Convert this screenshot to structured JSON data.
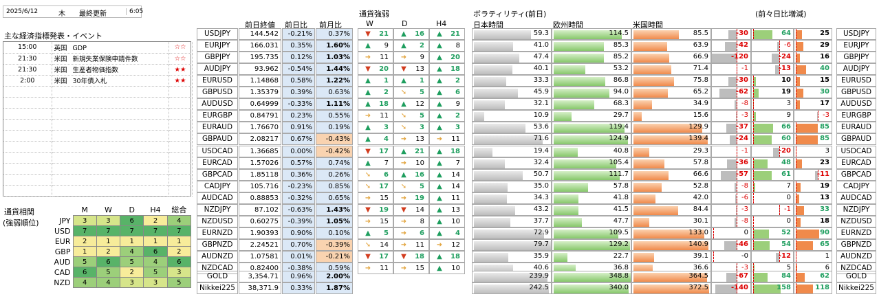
{
  "header": {
    "date": "2025/6/12",
    "weekday": "木",
    "update_label": "最終更新",
    "time": "6:05"
  },
  "events": {
    "title": "主な経済指標発表・イベント",
    "rows": [
      {
        "time": "15:00",
        "country": "英国",
        "name": "GDP",
        "stars": "☆☆"
      },
      {
        "time": "21:30",
        "country": "米国",
        "name": "新規失業保険申請件数",
        "stars": "☆☆"
      },
      {
        "time": "21:30",
        "country": "米国",
        "name": "生産者物価指数",
        "stars": "★★"
      },
      {
        "time": "2:00",
        "country": "米国",
        "name": "30年債入札",
        "stars": "★★"
      }
    ]
  },
  "correlation": {
    "title1": "通貨相関",
    "title2": "(強弱順位)",
    "cols": [
      "M",
      "W",
      "D",
      "H4",
      "総合"
    ],
    "rows": [
      {
        "ccy": "JPY",
        "vals": [
          "3",
          "3",
          "6",
          "2",
          "4"
        ]
      },
      {
        "ccy": "USD",
        "vals": [
          "7",
          "7",
          "7",
          "7",
          "7"
        ]
      },
      {
        "ccy": "EUR",
        "vals": [
          "2",
          "1",
          "1",
          "1",
          "1"
        ]
      },
      {
        "ccy": "GBP",
        "vals": [
          "1",
          "2",
          "4",
          "6",
          "2"
        ]
      },
      {
        "ccy": "AUD",
        "vals": [
          "5",
          "6",
          "5",
          "4",
          "6"
        ]
      },
      {
        "ccy": "CAD",
        "vals": [
          "6",
          "5",
          "2",
          "5",
          "3"
        ]
      },
      {
        "ccy": "NZD",
        "vals": [
          "4",
          "4",
          "3",
          "3",
          "5"
        ]
      }
    ]
  },
  "price": {
    "col_prev": "前日終値",
    "col_day": "前日比",
    "col_month": "前月比"
  },
  "strength": {
    "title": "通貨強弱",
    "cols": [
      "W",
      "D",
      "H4"
    ]
  },
  "vol": {
    "title": "ボラティリティ(前日)",
    "jp": "日本時間",
    "eu": "欧州時間",
    "us": "米国時間",
    "diff": "(前々日比増減)"
  },
  "pairs": [
    {
      "name": "USDJPY",
      "prev": "144.542",
      "day": "-0.21%",
      "month": "0.37%",
      "s": [
        [
          "dn",
          "21"
        ],
        [
          "up",
          "16"
        ],
        [
          "up",
          "21"
        ]
      ],
      "jp": "59.3",
      "eu": "114.5",
      "us": "85.5",
      "d1": "-30",
      "d2": "64",
      "d3": "25"
    },
    {
      "name": "EURJPY",
      "prev": "166.031",
      "day": "0.35%",
      "month": "1.60%",
      "s": [
        [
          "up",
          "9"
        ],
        [
          "up",
          "2"
        ],
        [
          "up",
          "8"
        ]
      ],
      "jp": "41.0",
      "eu": "85.3",
      "us": "63.9",
      "d1": "-42",
      "d2": "-6",
      "d3": "29"
    },
    {
      "name": "GBPJPY",
      "prev": "195.735",
      "day": "0.12%",
      "month": "1.03%",
      "s": [
        [
          "rt",
          "11"
        ],
        [
          "rt",
          "9"
        ],
        [
          "up",
          "20"
        ]
      ],
      "jp": "47.4",
      "eu": "85.2",
      "us": "66.9",
      "d1": "-120",
      "d2": "-24",
      "d3": "16"
    },
    {
      "name": "AUDJPY",
      "prev": "93.962",
      "day": "-0.54%",
      "month": "1.44%",
      "s": [
        [
          "dn",
          "20"
        ],
        [
          "dn",
          "13"
        ],
        [
          "up",
          "18"
        ]
      ],
      "jp": "40.1",
      "eu": "53.2",
      "us": "71.4",
      "d1": "-1",
      "d2": "-13",
      "d3": "40"
    },
    {
      "name": "EURUSD",
      "prev": "1.14868",
      "day": "0.58%",
      "month": "1.22%",
      "s": [
        [
          "up",
          "1"
        ],
        [
          "up",
          "1"
        ],
        [
          "up",
          "2"
        ]
      ],
      "jp": "33.3",
      "eu": "86.8",
      "us": "75.8",
      "d1": "-30",
      "d2": "10",
      "d3": "15"
    },
    {
      "name": "GBPUSD",
      "prev": "1.35379",
      "day": "0.39%",
      "month": "0.63%",
      "s": [
        [
          "up",
          "2"
        ],
        [
          "dr",
          "5"
        ],
        [
          "up",
          "6"
        ]
      ],
      "jp": "45.9",
      "eu": "94.0",
      "us": "65.2",
      "d1": "-62",
      "d2": "19",
      "d3": "30"
    },
    {
      "name": "AUDUSD",
      "prev": "0.64999",
      "day": "-0.33%",
      "month": "1.11%",
      "s": [
        [
          "up",
          "18"
        ],
        [
          "up",
          "12"
        ],
        [
          "up",
          "9"
        ]
      ],
      "jp": "32.1",
      "eu": "68.3",
      "us": "34.9",
      "d1": "-8",
      "d2": "3",
      "d3": "17"
    },
    {
      "name": "EURGBP",
      "prev": "0.84791",
      "day": "0.23%",
      "month": "0.55%",
      "s": [
        [
          "rt",
          "11"
        ],
        [
          "dr",
          "5"
        ],
        [
          "up",
          "2"
        ]
      ],
      "jp": "10.9",
      "eu": "29.7",
      "us": "15.6",
      "d1": "-3",
      "d2": "9",
      "d3": "-3"
    },
    {
      "name": "EURAUD",
      "prev": "1.76670",
      "day": "0.91%",
      "month": "0.19%",
      "s": [
        [
          "up",
          "3"
        ],
        [
          "dr",
          "3"
        ],
        [
          "up",
          "3"
        ]
      ],
      "jp": "53.6",
      "eu": "119.4",
      "us": "129.9",
      "d1": "-37",
      "d2": "66",
      "d3": "85"
    },
    {
      "name": "GBPAUD",
      "prev": "2.08217",
      "day": "0.67%",
      "month": "-0.43%",
      "s": [
        [
          "up",
          "4"
        ],
        [
          "rt",
          "13"
        ],
        [
          "rt",
          "11"
        ]
      ],
      "jp": "71.6",
      "eu": "124.9",
      "us": "139.4",
      "d1": "-24",
      "d2": "60",
      "d3": "85"
    },
    {
      "name": "USDCAD",
      "prev": "1.36685",
      "day": "0.00%",
      "month": "-0.42%",
      "s": [
        [
          "dn",
          "17"
        ],
        [
          "up",
          "21"
        ],
        [
          "up",
          "18"
        ]
      ],
      "jp": "19.4",
      "eu": "40.8",
      "us": "29.3",
      "d1": "-1",
      "d2": "-20",
      "d3": "3"
    },
    {
      "name": "EURCAD",
      "prev": "1.57026",
      "day": "0.57%",
      "month": "0.74%",
      "s": [
        [
          "up",
          "7"
        ],
        [
          "rt",
          "10"
        ],
        [
          "up",
          "7"
        ]
      ],
      "jp": "32.4",
      "eu": "105.4",
      "us": "57.8",
      "d1": "-36",
      "d2": "48",
      "d3": "23"
    },
    {
      "name": "GBPCAD",
      "prev": "1.85118",
      "day": "0.36%",
      "month": "0.26%",
      "s": [
        [
          "dr",
          "6"
        ],
        [
          "up",
          "16"
        ],
        [
          "up",
          "14"
        ]
      ],
      "jp": "50.7",
      "eu": "111.7",
      "us": "66.6",
      "d1": "-57",
      "d2": "61",
      "d3": "-11"
    },
    {
      "name": "CADJPY",
      "prev": "105.716",
      "day": "-0.23%",
      "month": "0.85%",
      "s": [
        [
          "dr",
          "17"
        ],
        [
          "dr",
          "5"
        ],
        [
          "up",
          "14"
        ]
      ],
      "jp": "35.0",
      "eu": "57.8",
      "us": "52.8",
      "d1": "-8",
      "d2": "7",
      "d3": "19"
    },
    {
      "name": "AUDCAD",
      "prev": "0.88853",
      "day": "-0.32%",
      "month": "0.65%",
      "s": [
        [
          "rt",
          "15"
        ],
        [
          "rt",
          "19"
        ],
        [
          "up",
          "11"
        ]
      ],
      "jp": "34.3",
      "eu": "41.8",
      "us": "42.0",
      "d1": "-6",
      "d2": "0",
      "d3": "13"
    },
    {
      "name": "NZDJPY",
      "prev": "87.102",
      "day": "-0.63%",
      "month": "1.43%",
      "s": [
        [
          "dn",
          "19"
        ],
        [
          "dn",
          "14"
        ],
        [
          "up",
          "13"
        ]
      ],
      "jp": "43.2",
      "eu": "41.5",
      "us": "84.4",
      "d1": "-3",
      "d2": "-1",
      "d3": "33"
    },
    {
      "name": "NZDUSD",
      "prev": "0.60275",
      "day": "-0.39%",
      "month": "1.05%",
      "s": [
        [
          "rt",
          "15"
        ],
        [
          "rt",
          "8"
        ],
        [
          "up",
          "10"
        ]
      ],
      "jp": "37.7",
      "eu": "47.7",
      "us": "30.1",
      "d1": "-8",
      "d2": "0",
      "d3": "18"
    },
    {
      "name": "EURNZD",
      "prev": "1.90393",
      "day": "0.90%",
      "month": "0.10%",
      "s": [
        [
          "up",
          "5"
        ],
        [
          "rt",
          "6"
        ],
        [
          "up",
          "4"
        ]
      ],
      "jp": "72.9",
      "eu": "109.5",
      "us": "133.0",
      "d1": "0",
      "d2": "52",
      "d3": "90"
    },
    {
      "name": "GBPNZD",
      "prev": "2.24521",
      "day": "0.70%",
      "month": "-0.39%",
      "s": [
        [
          "dr",
          "14"
        ],
        [
          "rt",
          "11"
        ],
        [
          "rt",
          "12"
        ]
      ],
      "jp": "79.7",
      "eu": "129.2",
      "us": "140.9",
      "d1": "-46",
      "d2": "54",
      "d3": "65"
    },
    {
      "name": "AUDNZD",
      "prev": "1.07581",
      "day": "0.01%",
      "month": "-0.21%",
      "s": [
        [
          "dn",
          "17"
        ],
        [
          "dn",
          "18"
        ],
        [
          "up",
          "18"
        ]
      ],
      "jp": "35.9",
      "eu": "22.7",
      "us": "39.1",
      "d1": "-0",
      "d2": "-12",
      "d3": "1"
    },
    {
      "name": "NZDCAD",
      "prev": "0.82400",
      "day": "-0.38%",
      "month": "0.59%",
      "s": [
        [
          "rt",
          "11"
        ],
        [
          "rt",
          "15"
        ],
        [
          "up",
          "10"
        ]
      ],
      "jp": "40.6",
      "eu": "36.8",
      "us": "36.6",
      "d1": "-3",
      "d2": "5",
      "d3": "6"
    }
  ],
  "extra": [
    {
      "name": "GOLD",
      "prev": "3,354.71",
      "day": "0.96%",
      "month": "2.00%",
      "jp": "239.9",
      "eu": "348.8",
      "us": "364.5",
      "d1": "-67",
      "d2": "84",
      "d3": "62"
    },
    {
      "name": "Nikkei225",
      "prev": "38,371.9",
      "day": "0.33%",
      "month": "1.87%",
      "jp": "242.5",
      "eu": "340.0",
      "us": "372.5",
      "d1": "-140",
      "d2": "158",
      "d3": "118"
    }
  ]
}
